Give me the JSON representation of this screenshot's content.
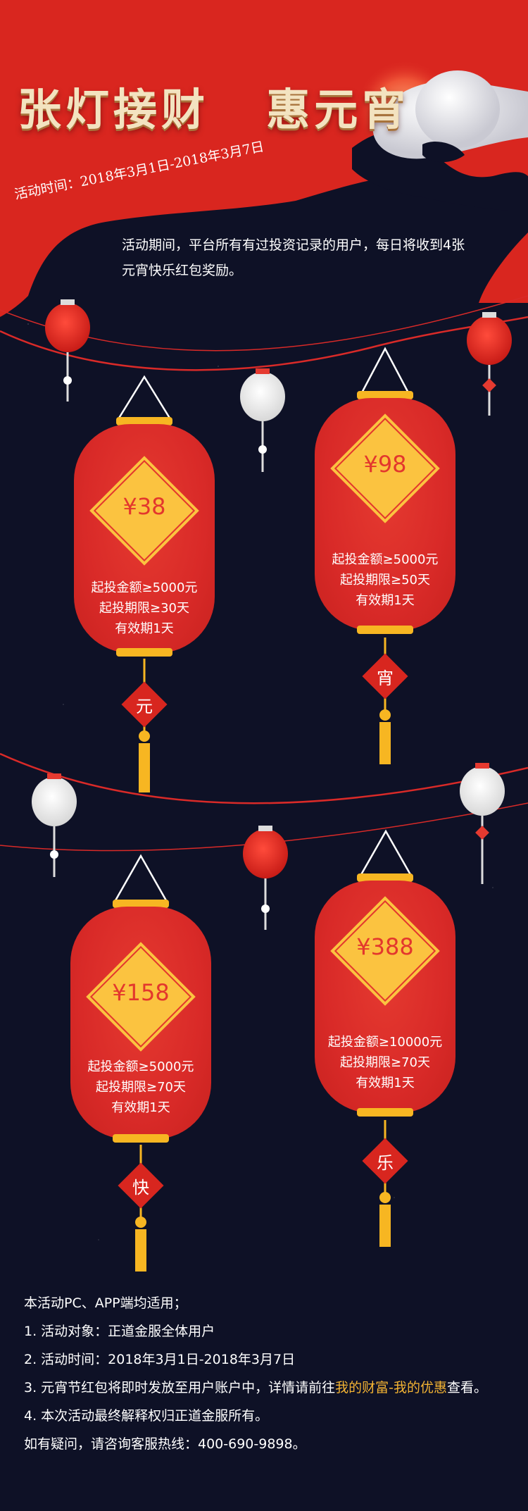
{
  "title": {
    "part1": "张灯接财",
    "part2": "惠元宵"
  },
  "activity_time": {
    "label": "活动时间：",
    "value": "2018年3月1日-2018年3月7日"
  },
  "intro": "活动期间，平台所有有过投资记录的用户，每日将收到4张元宵快乐红包奖励。",
  "lanterns": [
    {
      "amount": "¥38",
      "line1": "起投金额≥5000元",
      "line2": "起投期限≥30天",
      "line3": "有效期1天",
      "tag": "元"
    },
    {
      "amount": "¥98",
      "line1": "起投金额≥5000元",
      "line2": "起投期限≥50天",
      "line3": "有效期1天",
      "tag": "宵"
    },
    {
      "amount": "¥158",
      "line1": "起投金额≥5000元",
      "line2": "起投期限≥70天",
      "line3": "有效期1天",
      "tag": "快"
    },
    {
      "amount": "¥388",
      "line1": "起投金额≥10000元",
      "line2": "起投期限≥70天",
      "line3": "有效期1天",
      "tag": "乐"
    }
  ],
  "rules": {
    "header": "本活动PC、APP端均适用；",
    "item1": "1.  活动对象：正道金服全体用户",
    "item2": "2.  活动时间：2018年3月1日-2018年3月7日",
    "item3_prefix": "3.  元宵节红包将即时发放至用户账户中，详情请前往",
    "item3_link": "我的财富-我的优惠",
    "item3_suffix": "查看。",
    "item4": "4.  本次活动最终解释权归正道金服所有。",
    "contact": "如有疑问，请咨询客服热线：400-690-9898。"
  },
  "colors": {
    "red": "#d92a28",
    "gold": "#fbc340",
    "navy": "#0e1126",
    "highlight": "#f3b333"
  }
}
